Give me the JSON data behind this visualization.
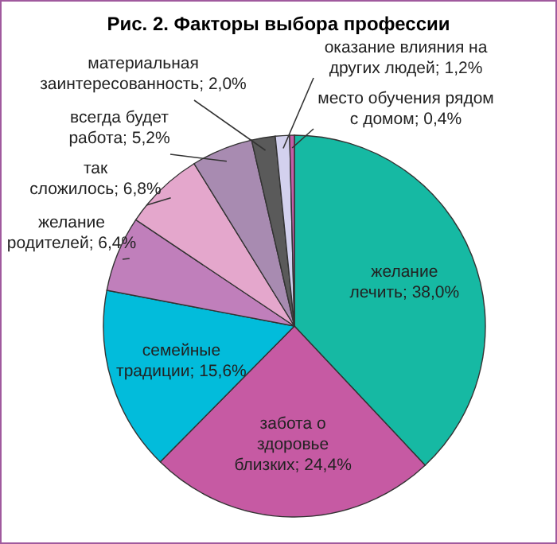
{
  "chart_data": {
    "type": "pie",
    "title": "Рис. 2. Факторы выбора профессии",
    "categories": [
      "желание лечить",
      "забота о здоровье близких",
      "семейные традиции",
      "желание родителей",
      "так сложилось",
      "всегда будет работа",
      "материальная заинтересованность",
      "оказание влияния на других людей",
      "место обучения рядом с домом"
    ],
    "values": [
      38.0,
      24.4,
      15.6,
      6.4,
      6.8,
      5.2,
      2.0,
      1.2,
      0.4
    ],
    "value_labels": [
      "38,0%",
      "24,4%",
      "15,6%",
      "6,4%",
      "6,8%",
      "5,2%",
      "2,0%",
      "1,2%",
      "0,4%"
    ],
    "colors": [
      "#16b9a3",
      "#c65aa3",
      "#02bcdb",
      "#c07fbb",
      "#e4a7cc",
      "#a88bb1",
      "#5a5a5a",
      "#d3d1ee",
      "#c45ca6"
    ]
  }
}
